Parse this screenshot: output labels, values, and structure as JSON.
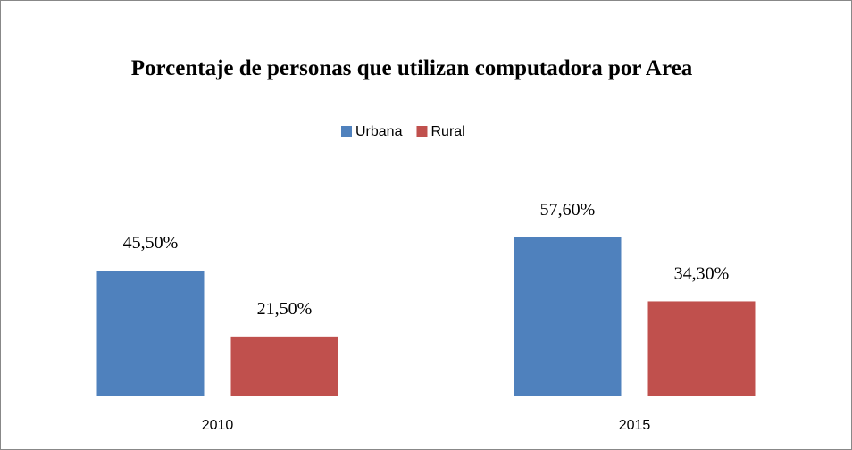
{
  "chart_data": {
    "type": "bar",
    "title": "Porcentaje de personas que utilizan computadora por Area",
    "categories": [
      "2010",
      "2015"
    ],
    "series": [
      {
        "name": "Urbana",
        "color": "#4f81bd",
        "values": [
          45.5,
          57.6
        ],
        "value_labels": [
          "45,50%",
          "57,60%"
        ]
      },
      {
        "name": "Rural",
        "color": "#c0504d",
        "values": [
          21.5,
          34.3
        ],
        "value_labels": [
          "21,50%",
          "34,30%"
        ]
      }
    ],
    "ylim": [
      0,
      65
    ],
    "legend": "top"
  }
}
